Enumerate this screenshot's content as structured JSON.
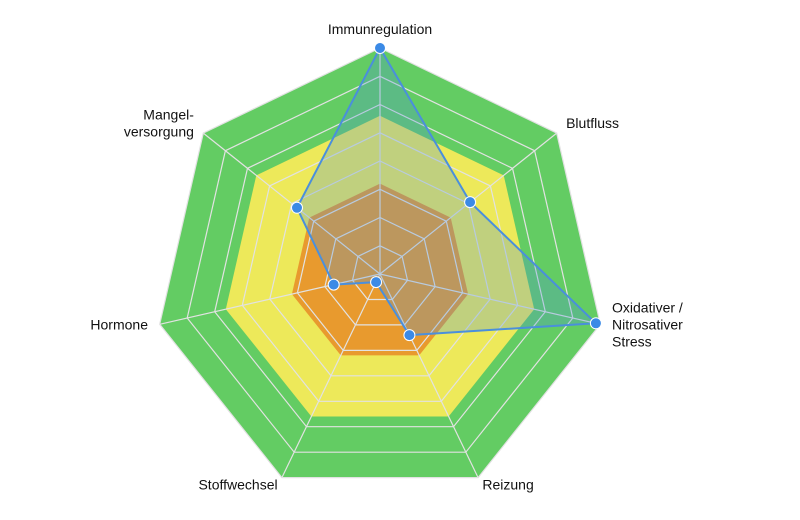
{
  "chart_data": {
    "type": "radar",
    "axes": [
      {
        "name": "Immunregulation",
        "lines": [
          "Immunregulation"
        ]
      },
      {
        "name": "Blutfluss",
        "lines": [
          "Blutfluss"
        ]
      },
      {
        "name": "Oxidativer / Nitrosativer Stress",
        "lines": [
          "Oxidativer /",
          "Nitrosativer",
          "Stress"
        ]
      },
      {
        "name": "Reizung",
        "lines": [
          "Reizung"
        ]
      },
      {
        "name": "Stoffwechsel",
        "lines": [
          "Stoffwechsel"
        ]
      },
      {
        "name": "Hormone",
        "lines": [
          "Hormone"
        ]
      },
      {
        "name": "Mangelversorgung",
        "lines": [
          "Mangel-",
          "versorgung"
        ]
      }
    ],
    "max": 10,
    "grid_levels": 8,
    "bands": [
      {
        "from": 0,
        "to": 4,
        "color": "#e89a2e"
      },
      {
        "from": 4,
        "to": 7,
        "color": "#ede95a"
      },
      {
        "from": 7,
        "to": 10,
        "color": "#63cc63"
      }
    ],
    "grid_color": "#e2e2e2",
    "series": [
      {
        "values": [
          10,
          5.1,
          9.8,
          3.0,
          0.4,
          2.1,
          4.7
        ],
        "line_color": "#4a8fdc",
        "fill_color": "#4a8fdc",
        "fill_opacity": 0.28,
        "marker_color": "#3b8ae6"
      }
    ]
  }
}
